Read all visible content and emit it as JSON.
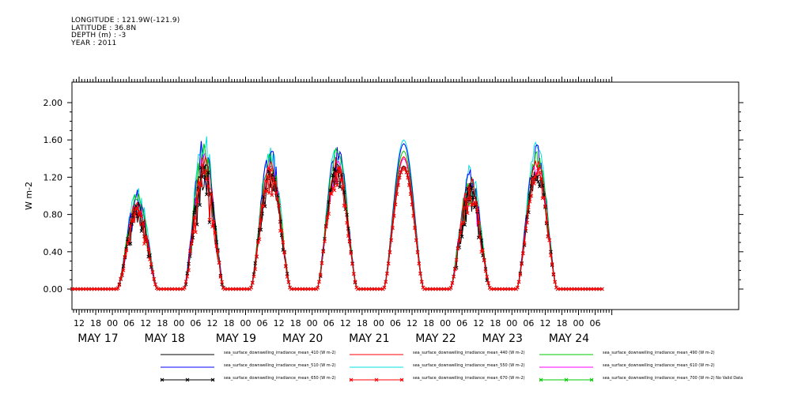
{
  "header": {
    "lines": [
      "LONGITUDE : 121.9W(-121.9)",
      "LATITUDE : 36.8N",
      "DEPTH (m) : -3",
      "YEAR : 2011"
    ]
  },
  "chart_data": {
    "type": "line",
    "ylabel": "W m-2",
    "ylim": [
      -0.22,
      2.22
    ],
    "yticks": [
      "0.00",
      "0.40",
      "0.80",
      "1.20",
      "1.60",
      "2.00"
    ],
    "xticks": [
      "12",
      "18",
      "00",
      "06",
      "12",
      "18",
      "00",
      "06",
      "12",
      "18",
      "00",
      "06",
      "12",
      "18",
      "00",
      "06",
      "12",
      "18",
      "00",
      "06",
      "12",
      "18",
      "00",
      "06",
      "12",
      "18",
      "00",
      "06",
      "12",
      "18",
      "00",
      "06"
    ],
    "day_labels": [
      "MAY 17",
      "MAY 18",
      "MAY 19",
      "MAY 20",
      "MAY 21",
      "MAY 22",
      "MAY 23",
      "MAY 24"
    ],
    "series": [
      {
        "name": "sea_surface_downwelling_irradiance_mean_410 (W m-2)",
        "color": "#000000",
        "peaks": [
          0.95,
          1.45,
          1.34,
          1.37,
          1.32,
          1.15,
          1.33
        ],
        "noise": [
          0.35,
          0.4,
          0.22,
          0.2,
          0.0,
          0.35,
          0.15
        ],
        "markers": false
      },
      {
        "name": "sea_surface_downwelling_irradiance_mean_440 (W m-2)",
        "color": "#ff0000",
        "peaks": [
          0.98,
          1.5,
          1.4,
          1.43,
          1.42,
          1.2,
          1.43
        ],
        "noise": [
          0.35,
          0.4,
          0.22,
          0.2,
          0.0,
          0.35,
          0.15
        ],
        "markers": false
      },
      {
        "name": "sea_surface_downwelling_irradiance_mean_490 (W m-2)",
        "color": "#00c800",
        "peaks": [
          1.05,
          1.6,
          1.5,
          1.52,
          1.48,
          1.25,
          1.5
        ],
        "noise": [
          0.35,
          0.4,
          0.22,
          0.2,
          0.0,
          0.35,
          0.15
        ],
        "markers": false
      },
      {
        "name": "sea_surface_downwelling_irradiance_mean_510 (W m-2)",
        "color": "#0000ff",
        "peaks": [
          1.08,
          1.65,
          1.56,
          1.58,
          1.56,
          1.3,
          1.56
        ],
        "noise": [
          0.35,
          0.4,
          0.22,
          0.2,
          0.0,
          0.35,
          0.15
        ],
        "markers": false
      },
      {
        "name": "sea_surface_downwelling_irradiance_mean_550 (W m-2)",
        "color": "#00e0e0",
        "peaks": [
          1.12,
          1.72,
          1.6,
          1.62,
          1.6,
          1.35,
          1.6
        ],
        "noise": [
          0.35,
          0.4,
          0.22,
          0.2,
          0.0,
          0.35,
          0.15
        ],
        "markers": false
      },
      {
        "name": "sea_surface_downwelling_irradiance_mean_610 (W m-2)",
        "color": "#ff00ff",
        "peaks": [
          0.98,
          1.5,
          1.4,
          1.42,
          1.4,
          1.2,
          1.42
        ],
        "noise": [
          0.35,
          0.4,
          0.22,
          0.2,
          0.0,
          0.35,
          0.15
        ],
        "markers": false
      },
      {
        "name": "sea_surface_downwelling_irradiance_mean_650 (W m-2)",
        "color": "#000000",
        "peaks": [
          0.9,
          1.38,
          1.32,
          1.35,
          1.3,
          1.12,
          1.32
        ],
        "noise": [
          0.35,
          0.4,
          0.22,
          0.2,
          0.0,
          0.35,
          0.15
        ],
        "markers": true
      },
      {
        "name": "sea_surface_downwelling_irradiance_mean_670 (W m-2)",
        "color": "#ff0000",
        "peaks": [
          0.88,
          1.36,
          1.3,
          1.33,
          1.3,
          1.1,
          1.31
        ],
        "noise": [
          0.35,
          0.4,
          0.22,
          0.2,
          0.0,
          0.35,
          0.15
        ],
        "markers": true
      },
      {
        "name": "sea_surface_downwelling_irradiance_mean_700 (W m-2) No Valid Data",
        "color": "#00c800",
        "peaks": [],
        "noise": [],
        "markers": true
      }
    ]
  }
}
